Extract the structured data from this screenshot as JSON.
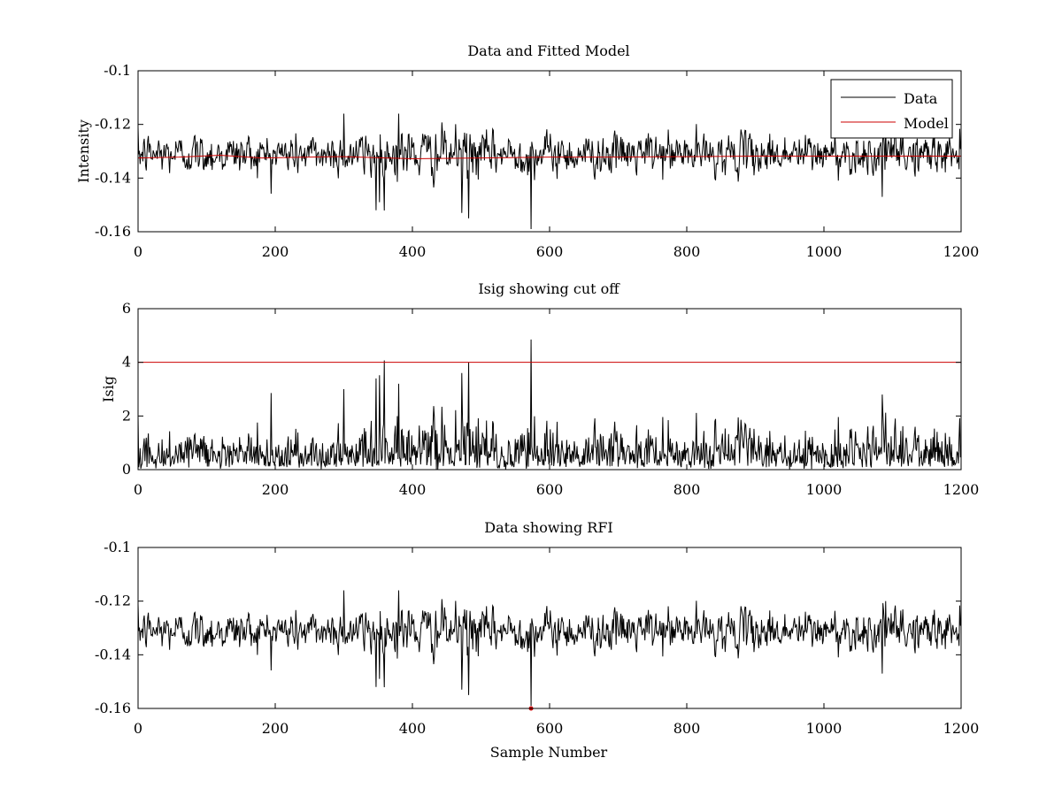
{
  "figure": {
    "background": "#ffffff"
  },
  "chart_data": [
    {
      "type": "line",
      "title": "Data and Fitted Model",
      "xlabel": "",
      "ylabel": "Intensity",
      "xlim": [
        0,
        1200
      ],
      "ylim": [
        -0.16,
        -0.1
      ],
      "xticks": [
        0,
        200,
        400,
        600,
        800,
        1000,
        1200
      ],
      "xtick_labels": [
        "0",
        "200",
        "400",
        "600",
        "800",
        "1000",
        "1200"
      ],
      "yticks": [
        -0.16,
        -0.14,
        -0.12,
        -0.1
      ],
      "ytick_labels": [
        "-0.16",
        "-0.14",
        "-0.12",
        "-0.1"
      ],
      "grid": false,
      "legend": {
        "placement": "top-right",
        "entries": [
          "Data",
          "Model"
        ]
      },
      "series": [
        {
          "name": "Data",
          "color": "#000000",
          "generated": "noise",
          "n": 1200,
          "baseline": -0.131,
          "noise_sd": 0.0045,
          "spikes": [
            {
              "x": 347,
              "y": -0.152
            },
            {
              "x": 352,
              "y": -0.149
            },
            {
              "x": 380,
              "y": -0.116
            },
            {
              "x": 300,
              "y": -0.116
            },
            {
              "x": 472,
              "y": -0.153
            },
            {
              "x": 482,
              "y": -0.155
            },
            {
              "x": 573,
              "y": -0.159
            },
            {
              "x": 1085,
              "y": -0.147
            },
            {
              "x": 1090,
              "y": -0.12
            }
          ]
        },
        {
          "name": "Model",
          "color": "#cc0000",
          "x": [
            0,
            60,
            120,
            180,
            250,
            300,
            400,
            500,
            600,
            700,
            800,
            900,
            1000,
            1100,
            1200
          ],
          "values": [
            -0.1325,
            -0.1322,
            -0.1315,
            -0.1325,
            -0.1322,
            -0.132,
            -0.1328,
            -0.1325,
            -0.1322,
            -0.1322,
            -0.132,
            -0.1318,
            -0.1318,
            -0.1318,
            -0.1318
          ]
        }
      ]
    },
    {
      "type": "line",
      "title": "Isig showing cut off",
      "xlabel": "",
      "ylabel": "Isig",
      "xlim": [
        0,
        1200
      ],
      "ylim": [
        0,
        6
      ],
      "xticks": [
        0,
        200,
        400,
        600,
        800,
        1000,
        1200
      ],
      "xtick_labels": [
        "0",
        "200",
        "400",
        "600",
        "800",
        "1000",
        "1200"
      ],
      "yticks": [
        0,
        2,
        4,
        6
      ],
      "ytick_labels": [
        "0",
        "2",
        "4",
        "6"
      ],
      "grid": false,
      "series": [
        {
          "color": "#000000",
          "generated": "abs-noise",
          "n": 1200,
          "noise_sd": 0.85,
          "spikes": [
            {
              "x": 347,
              "y": 3.4
            },
            {
              "x": 380,
              "y": 3.2
            },
            {
              "x": 300,
              "y": 3.0
            },
            {
              "x": 472,
              "y": 3.6
            },
            {
              "x": 482,
              "y": 4.0
            },
            {
              "x": 573,
              "y": 4.85
            },
            {
              "x": 1085,
              "y": 2.8
            }
          ]
        },
        {
          "color": "#cc0000",
          "x": [
            0,
            1200
          ],
          "values": [
            4,
            4
          ]
        }
      ]
    },
    {
      "type": "line",
      "title": "Data showing RFI",
      "xlabel": "Sample Number",
      "ylabel": "",
      "xlim": [
        0,
        1200
      ],
      "ylim": [
        -0.16,
        -0.1
      ],
      "xticks": [
        0,
        200,
        400,
        600,
        800,
        1000,
        1200
      ],
      "xtick_labels": [
        "0",
        "200",
        "400",
        "600",
        "800",
        "1000",
        "1200"
      ],
      "yticks": [
        -0.16,
        -0.14,
        -0.12,
        -0.1
      ],
      "ytick_labels": [
        "-0.16",
        "-0.14",
        "-0.12",
        "-0.1"
      ],
      "grid": false,
      "series": [
        {
          "color": "#000000",
          "generated": "same-as-panel-1-data"
        }
      ],
      "markers": [
        {
          "x": 573,
          "y": -0.16,
          "color": "#cc0000"
        }
      ]
    }
  ]
}
